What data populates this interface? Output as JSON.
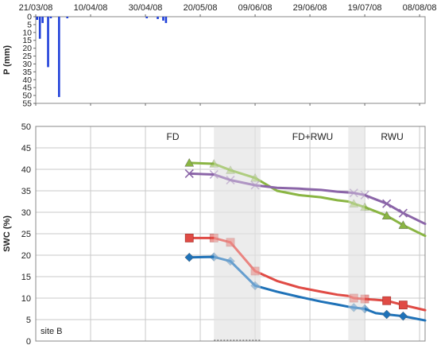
{
  "chart_data": [
    {
      "type": "bar",
      "ylabel": "P (mm)",
      "ylim": [
        0,
        55
      ],
      "y_inverted": true,
      "yticks": [
        0,
        5,
        10,
        15,
        20,
        25,
        30,
        35,
        40,
        45,
        50,
        55
      ],
      "x_tick_labels": [
        "21/03/08",
        "10/04/08",
        "30/04/08",
        "20/05/08",
        "09/06/08",
        "29/06/08",
        "19/07/08",
        "08/08/08"
      ],
      "x_tick_days": [
        0,
        20,
        40,
        60,
        80,
        100,
        120,
        140
      ],
      "x_range_days": [
        0,
        142
      ],
      "bar_color": "#1f3fd9",
      "bars": [
        {
          "day": 0.5,
          "value": 2
        },
        {
          "day": 1.5,
          "value": 14
        },
        {
          "day": 2.5,
          "value": 4
        },
        {
          "day": 4.5,
          "value": 32
        },
        {
          "day": 5.5,
          "value": 1
        },
        {
          "day": 8.5,
          "value": 51
        },
        {
          "day": 11.5,
          "value": 1
        },
        {
          "day": 40.5,
          "value": 1
        },
        {
          "day": 44.5,
          "value": 1.5
        },
        {
          "day": 46.5,
          "value": 2.5
        },
        {
          "day": 47.5,
          "value": 4
        }
      ]
    },
    {
      "type": "line",
      "ylabel": "SWC (%)",
      "ylim": [
        0,
        50
      ],
      "yticks": [
        0,
        5,
        10,
        15,
        20,
        25,
        30,
        35,
        40,
        45,
        50
      ],
      "x_range_days": [
        0,
        142
      ],
      "grid": true,
      "shaded_periods": [
        [
          65,
          82
        ],
        [
          114,
          120
        ]
      ],
      "period_labels": [
        {
          "text": "FD",
          "day": 50
        },
        {
          "text": "FD+RWU",
          "day": 101
        },
        {
          "text": "RWU",
          "day": 130
        }
      ],
      "annotation": "site B",
      "series": [
        {
          "color": "#8ab543",
          "marker": "triangle",
          "x": [
            56,
            65,
            71,
            80,
            88,
            96,
            104,
            110,
            114,
            116,
            120,
            124,
            128,
            134,
            142
          ],
          "y": [
            41.5,
            41.3,
            39.8,
            38,
            35,
            34,
            33.5,
            32.8,
            32.5,
            32,
            31.2,
            30.2,
            29.2,
            27,
            24.5
          ]
        },
        {
          "color": "#8b65a8",
          "marker": "x",
          "x": [
            56,
            65,
            71,
            80,
            88,
            96,
            104,
            110,
            114,
            116,
            120,
            124,
            128,
            134,
            142
          ],
          "y": [
            39,
            38.8,
            37.5,
            36.3,
            35.7,
            35.5,
            35.2,
            34.8,
            34.6,
            34.5,
            34,
            33,
            32,
            29.8,
            27.3
          ]
        },
        {
          "color": "#e04b45",
          "marker": "square",
          "x": [
            56,
            65,
            71,
            80,
            88,
            96,
            104,
            110,
            114,
            116,
            120,
            124,
            128,
            134,
            142
          ],
          "y": [
            24,
            24,
            23,
            16.3,
            14,
            12.5,
            11.5,
            10.8,
            10.5,
            10,
            9.8,
            9.6,
            9.4,
            8.4,
            7.2
          ]
        },
        {
          "color": "#1f72b8",
          "marker": "diamond",
          "x": [
            56,
            65,
            71,
            80,
            88,
            96,
            104,
            110,
            114,
            116,
            120,
            124,
            128,
            134,
            142
          ],
          "y": [
            19.5,
            19.6,
            18.6,
            12.9,
            11.5,
            10.3,
            9.2,
            8.5,
            8,
            7.8,
            7.5,
            6.5,
            6.2,
            5.8,
            4.8
          ]
        }
      ]
    }
  ]
}
